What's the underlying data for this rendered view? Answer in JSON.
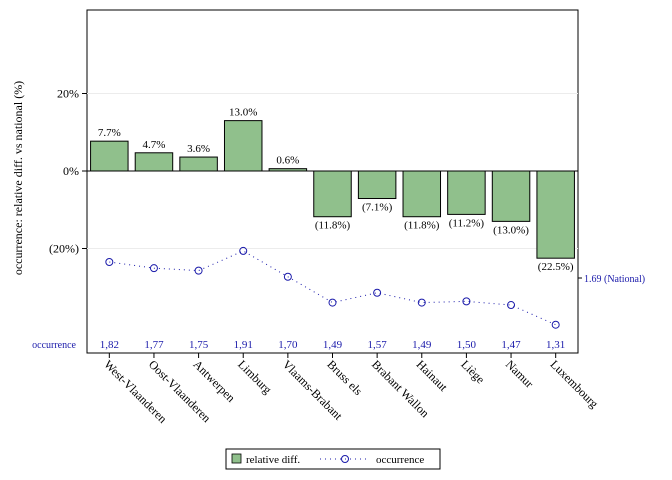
{
  "chart_data": {
    "type": "bar",
    "categories": [
      "West-Vlaanderen",
      "Oost-Vlaanderen",
      "Antwerpen",
      "Limburg",
      "Vlaams-Brabant",
      "Bruss els",
      "Brabant Wallon",
      "Hainaut",
      "Liège",
      "Namur",
      "Luxembourg"
    ],
    "ylabel": "occurrence: relative diff. vs national (%)",
    "yticks": [
      {
        "value": 20,
        "label": "20%"
      },
      {
        "value": 0,
        "label": "0%"
      },
      {
        "value": -20,
        "label": "(20%)"
      }
    ],
    "ylim": [
      -44,
      42
    ],
    "grid": true,
    "legend_position": "bottom",
    "series": [
      {
        "name": "relative diff.",
        "kind": "bar",
        "color": "#90c08c",
        "values": [
          7.7,
          4.7,
          3.6,
          13.0,
          0.6,
          -11.8,
          -7.1,
          -11.8,
          -11.2,
          -13.0,
          -22.5
        ],
        "labels": [
          "7.7%",
          "4.7%",
          "3.6%",
          "13.0%",
          "0.6%",
          "(11.8%)",
          "(7.1%)",
          "(11.8%)",
          "(11.2%)",
          "(13.0%)",
          "(22.5%)"
        ]
      },
      {
        "name": "occurrence",
        "kind": "line",
        "color": "#1a1aaa",
        "values": [
          1.82,
          1.77,
          1.75,
          1.91,
          1.7,
          1.49,
          1.57,
          1.49,
          1.5,
          1.47,
          1.31
        ],
        "labels": [
          "1,82",
          "1,77",
          "1,75",
          "1,91",
          "1,70",
          "1,49",
          "1,57",
          "1,49",
          "1,50",
          "1,47",
          "1,31"
        ]
      }
    ],
    "occurrence_row_label": "occurrence",
    "national_value": 1.69,
    "national_label": "1.69 (National)"
  }
}
